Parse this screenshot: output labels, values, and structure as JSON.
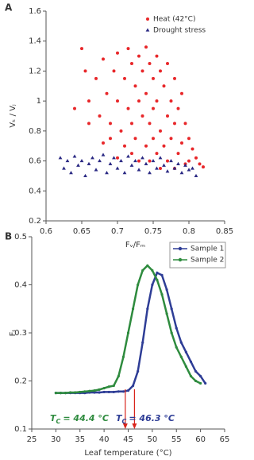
{
  "chart_data": [
    {
      "type": "scatter",
      "panel_label": "A",
      "xlabel": "Fᵥ/Fₘ",
      "ylabel": "Vₖ / Vⱼ",
      "xlim": [
        0.6,
        0.85
      ],
      "xticks": [
        0.6,
        0.65,
        0.7,
        0.75,
        0.8,
        0.85
      ],
      "ylim": [
        0.2,
        1.6
      ],
      "yticks": [
        0.2,
        0.4,
        0.6,
        0.8,
        1,
        1.2,
        1.4,
        1.6
      ],
      "legend": "upper right",
      "series": [
        {
          "name": "Heat (42°C)",
          "color": "#e8272a",
          "marker": "circle",
          "x": [
            0.65,
            0.655,
            0.66,
            0.67,
            0.675,
            0.68,
            0.685,
            0.69,
            0.695,
            0.7,
            0.7,
            0.705,
            0.71,
            0.71,
            0.715,
            0.715,
            0.72,
            0.72,
            0.72,
            0.725,
            0.725,
            0.73,
            0.73,
            0.73,
            0.735,
            0.735,
            0.74,
            0.74,
            0.74,
            0.745,
            0.745,
            0.745,
            0.75,
            0.75,
            0.75,
            0.755,
            0.755,
            0.755,
            0.76,
            0.76,
            0.76,
            0.765,
            0.765,
            0.77,
            0.77,
            0.77,
            0.775,
            0.775,
            0.78,
            0.78,
            0.78,
            0.785,
            0.785,
            0.79,
            0.79,
            0.795,
            0.795,
            0.8,
            0.8,
            0.805,
            0.81,
            0.815,
            0.82,
            0.69,
            0.7,
            0.68,
            0.66,
            0.64
          ],
          "values": [
            1.35,
            1.2,
            1.0,
            1.15,
            0.9,
            1.28,
            1.05,
            0.85,
            1.2,
            1.32,
            1.0,
            0.8,
            1.15,
            0.7,
            1.35,
            0.95,
            1.25,
            0.85,
            0.65,
            1.1,
            0.75,
            1.3,
            1.0,
            0.6,
            1.2,
            0.9,
            1.36,
            1.05,
            0.7,
            1.25,
            0.85,
            0.6,
            1.15,
            0.95,
            0.75,
            1.3,
            1.0,
            0.65,
            1.2,
            0.8,
            0.55,
            1.1,
            0.7,
            1.25,
            0.9,
            0.6,
            1.0,
            0.75,
            1.15,
            0.85,
            0.55,
            0.95,
            0.65,
            1.05,
            0.72,
            0.85,
            0.58,
            0.75,
            0.6,
            0.68,
            0.62,
            0.58,
            0.56,
            0.75,
            0.62,
            0.72,
            0.85,
            0.95
          ]
        },
        {
          "name": "Drought stress",
          "color": "#2b2a84",
          "marker": "triangle",
          "x": [
            0.62,
            0.625,
            0.63,
            0.635,
            0.64,
            0.645,
            0.65,
            0.655,
            0.66,
            0.665,
            0.67,
            0.675,
            0.68,
            0.685,
            0.69,
            0.695,
            0.7,
            0.705,
            0.71,
            0.715,
            0.72,
            0.725,
            0.73,
            0.735,
            0.74,
            0.745,
            0.75,
            0.755,
            0.76,
            0.765,
            0.77,
            0.775,
            0.78,
            0.785,
            0.79,
            0.795,
            0.8,
            0.805,
            0.81
          ],
          "values": [
            0.62,
            0.55,
            0.6,
            0.52,
            0.63,
            0.57,
            0.6,
            0.5,
            0.58,
            0.62,
            0.54,
            0.6,
            0.64,
            0.52,
            0.58,
            0.62,
            0.55,
            0.6,
            0.52,
            0.63,
            0.57,
            0.6,
            0.54,
            0.62,
            0.58,
            0.52,
            0.6,
            0.55,
            0.62,
            0.57,
            0.53,
            0.6,
            0.55,
            0.58,
            0.52,
            0.57,
            0.54,
            0.55,
            0.5
          ]
        }
      ]
    },
    {
      "type": "line",
      "panel_label": "B",
      "xlabel": "Leaf temperature (°C)",
      "ylabel": "Fₜ",
      "xlim": [
        25,
        65
      ],
      "xticks": [
        25,
        30,
        35,
        40,
        45,
        50,
        55,
        60,
        65
      ],
      "ylim": [
        0.1,
        0.5
      ],
      "yticks": [
        0.1,
        0.2,
        0.3,
        0.4,
        0.5
      ],
      "legend": "upper right",
      "x": [
        30,
        31,
        32,
        33,
        34,
        35,
        36,
        37,
        38,
        39,
        40,
        41,
        42,
        43,
        44,
        45,
        46,
        47,
        48,
        49,
        50,
        51,
        52,
        53,
        54,
        55,
        56,
        57,
        58,
        59,
        60,
        61
      ],
      "series": [
        {
          "name": "Sample 1",
          "color": "#2e3d96",
          "values": [
            0.175,
            0.175,
            0.175,
            0.175,
            0.175,
            0.175,
            0.175,
            0.176,
            0.176,
            0.176,
            0.177,
            0.177,
            0.177,
            0.178,
            0.178,
            0.18,
            0.19,
            0.22,
            0.28,
            0.35,
            0.4,
            0.425,
            0.42,
            0.39,
            0.35,
            0.31,
            0.28,
            0.26,
            0.24,
            0.22,
            0.21,
            0.195
          ]
        },
        {
          "name": "Sample 2",
          "color": "#2e8b3e",
          "values": [
            0.175,
            0.175,
            0.175,
            0.176,
            0.176,
            0.177,
            0.178,
            0.179,
            0.18,
            0.182,
            0.185,
            0.188,
            0.19,
            0.21,
            0.25,
            0.3,
            0.35,
            0.4,
            0.43,
            0.44,
            0.43,
            0.41,
            0.38,
            0.34,
            0.3,
            0.27,
            0.25,
            0.23,
            0.21,
            0.2,
            0.195,
            null
          ]
        }
      ],
      "annotations": [
        {
          "x": 44.4,
          "symbol": "T",
          "sub": "C",
          "text": "= 44.4 °C",
          "color": "#2e8b3e"
        },
        {
          "x": 46.3,
          "symbol": "T",
          "sub": "C",
          "text": "= 46.3 °C",
          "color": "#2e3d96"
        }
      ],
      "arrow_color": "#d9251c"
    }
  ]
}
